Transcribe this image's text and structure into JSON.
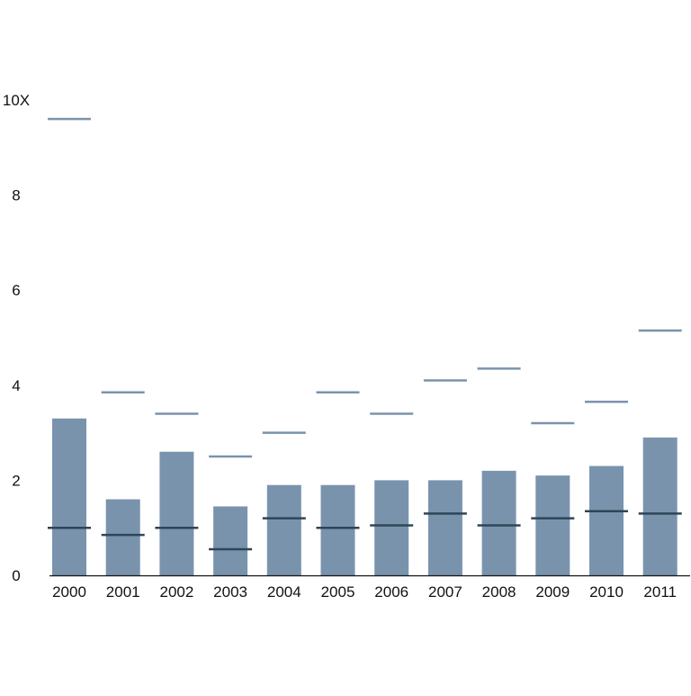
{
  "chart_data": {
    "type": "bar",
    "title": "",
    "xlabel": "",
    "ylabel": "",
    "categories": [
      "2000",
      "2001",
      "2002",
      "2003",
      "2004",
      "2005",
      "2006",
      "2007",
      "2008",
      "2009",
      "2010",
      "2011"
    ],
    "ylim": [
      0,
      10
    ],
    "yticks": [
      {
        "value": 0,
        "label": "0"
      },
      {
        "value": 2,
        "label": "2"
      },
      {
        "value": 4,
        "label": "4"
      },
      {
        "value": 6,
        "label": "6"
      },
      {
        "value": 8,
        "label": "8"
      },
      {
        "value": 10,
        "label": "10X"
      }
    ],
    "grid": false,
    "series": [
      {
        "kind": "bar",
        "color": "#7a93ad",
        "values": [
          3.3,
          1.6,
          2.6,
          1.45,
          1.9,
          1.9,
          2.0,
          2.0,
          2.2,
          2.1,
          2.3,
          2.9
        ]
      },
      {
        "kind": "marker",
        "color": "#7a93ad",
        "values": [
          9.6,
          3.85,
          3.4,
          2.5,
          3.0,
          3.85,
          3.4,
          4.1,
          4.35,
          3.2,
          3.65,
          5.15
        ]
      },
      {
        "kind": "marker",
        "color": "#2d4658",
        "values": [
          1.0,
          0.85,
          1.0,
          0.55,
          1.2,
          1.0,
          1.05,
          1.3,
          1.05,
          1.2,
          1.35,
          1.3
        ]
      }
    ]
  }
}
